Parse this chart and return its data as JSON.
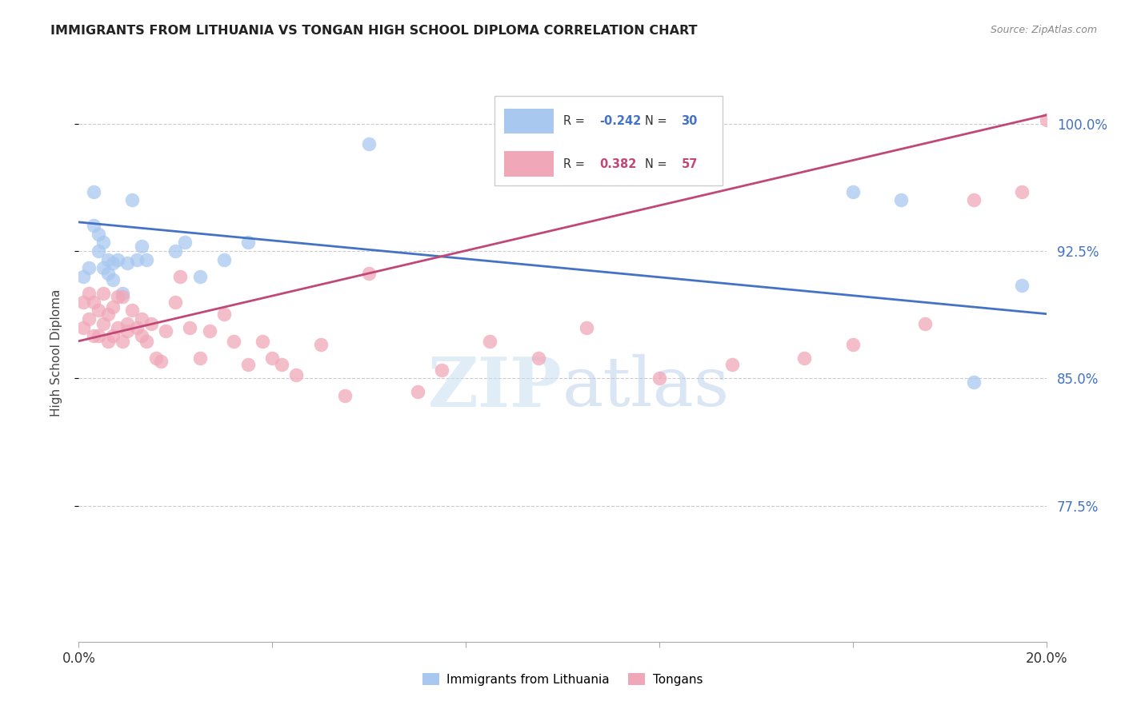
{
  "title": "IMMIGRANTS FROM LITHUANIA VS TONGAN HIGH SCHOOL DIPLOMA CORRELATION CHART",
  "source": "Source: ZipAtlas.com",
  "ylabel": "High School Diploma",
  "xlim": [
    0.0,
    0.2
  ],
  "ylim": [
    0.695,
    1.035
  ],
  "xticks": [
    0.0,
    0.04,
    0.08,
    0.12,
    0.16,
    0.2
  ],
  "xticklabels": [
    "0.0%",
    "",
    "",
    "",
    "",
    "20.0%"
  ],
  "ytick_positions": [
    0.775,
    0.85,
    0.925,
    1.0
  ],
  "ytick_labels": [
    "77.5%",
    "85.0%",
    "92.5%",
    "100.0%"
  ],
  "legend_r_blue": "-0.242",
  "legend_n_blue": "30",
  "legend_r_pink": "0.382",
  "legend_n_pink": "57",
  "blue_color": "#A8C8F0",
  "pink_color": "#F0A8B8",
  "blue_line_color": "#4472C4",
  "pink_line_color": "#C04878",
  "blue_line_y0": 0.942,
  "blue_line_y1": 0.888,
  "pink_line_y0": 0.872,
  "pink_line_y1": 1.005,
  "blue_x": [
    0.001,
    0.002,
    0.003,
    0.003,
    0.004,
    0.004,
    0.005,
    0.005,
    0.006,
    0.006,
    0.007,
    0.007,
    0.008,
    0.009,
    0.01,
    0.011,
    0.012,
    0.013,
    0.014,
    0.02,
    0.022,
    0.025,
    0.03,
    0.035,
    0.06,
    0.09,
    0.16,
    0.17,
    0.185,
    0.195
  ],
  "blue_y": [
    0.91,
    0.915,
    0.96,
    0.94,
    0.935,
    0.925,
    0.93,
    0.915,
    0.92,
    0.912,
    0.918,
    0.908,
    0.92,
    0.9,
    0.918,
    0.955,
    0.92,
    0.928,
    0.92,
    0.925,
    0.93,
    0.91,
    0.92,
    0.93,
    0.988,
    0.99,
    0.96,
    0.955,
    0.848,
    0.905
  ],
  "pink_x": [
    0.001,
    0.001,
    0.002,
    0.002,
    0.003,
    0.003,
    0.004,
    0.004,
    0.005,
    0.005,
    0.006,
    0.006,
    0.007,
    0.007,
    0.008,
    0.008,
    0.009,
    0.009,
    0.01,
    0.01,
    0.011,
    0.012,
    0.013,
    0.013,
    0.014,
    0.015,
    0.016,
    0.017,
    0.018,
    0.02,
    0.021,
    0.023,
    0.025,
    0.027,
    0.03,
    0.032,
    0.035,
    0.038,
    0.04,
    0.042,
    0.045,
    0.05,
    0.055,
    0.06,
    0.07,
    0.075,
    0.085,
    0.095,
    0.105,
    0.12,
    0.135,
    0.15,
    0.16,
    0.175,
    0.185,
    0.195,
    0.2
  ],
  "pink_y": [
    0.895,
    0.88,
    0.9,
    0.885,
    0.895,
    0.875,
    0.89,
    0.875,
    0.9,
    0.882,
    0.888,
    0.872,
    0.892,
    0.875,
    0.898,
    0.88,
    0.898,
    0.872,
    0.882,
    0.878,
    0.89,
    0.88,
    0.885,
    0.875,
    0.872,
    0.882,
    0.862,
    0.86,
    0.878,
    0.895,
    0.91,
    0.88,
    0.862,
    0.878,
    0.888,
    0.872,
    0.858,
    0.872,
    0.862,
    0.858,
    0.852,
    0.87,
    0.84,
    0.912,
    0.842,
    0.855,
    0.872,
    0.862,
    0.88,
    0.85,
    0.858,
    0.862,
    0.87,
    0.882,
    0.955,
    0.96,
    1.002
  ]
}
